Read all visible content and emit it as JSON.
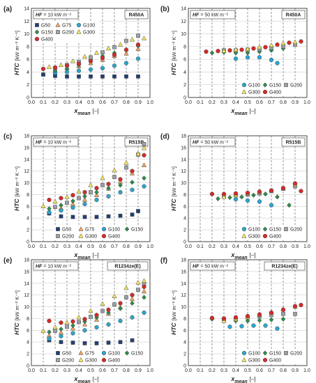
{
  "colors": {
    "G50": "#1f3f74",
    "G75": "#f4a25c",
    "G100": "#2aa6cf",
    "G150": "#2e8b4a",
    "G200": "#9aa0a6",
    "G300": "#f2e45c",
    "G400": "#d42a2a"
  },
  "markers": {
    "G50": "square",
    "G75": "triangle",
    "G100": "circle",
    "G150": "diamond",
    "G200": "square",
    "G300": "triangle",
    "G400": "circle"
  },
  "xlabel_main": "x",
  "xlabel_sub": "mean",
  "xlabel_unit": "[–]",
  "xticks": [
    "0.0",
    "0.1",
    "0.2",
    "0.3",
    "0.4",
    "0.5",
    "0.6",
    "0.7",
    "0.8",
    "0.9",
    "1.0"
  ],
  "ylabel_main": "HTC",
  "ylabel_unit": "[kW m⁻² K⁻¹]",
  "chart_data": [
    {
      "panel": "(a)",
      "type": "scatter",
      "hf_label": "HF",
      "hf_value": "= 10 kW m⁻²",
      "fluid": "R450A",
      "xlim": [
        0,
        1
      ],
      "ylim": [
        0,
        14
      ],
      "yticks": [
        "0",
        "2",
        "4",
        "6",
        "8",
        "10",
        "12",
        "14"
      ],
      "legend": {
        "position": "top-left",
        "rows": [
          [
            "G50",
            "G75",
            "G100"
          ],
          [
            "G150",
            "G200",
            "G300"
          ],
          [
            "G400"
          ]
        ]
      },
      "series": [
        {
          "name": "G50",
          "x": [
            0.1,
            0.2,
            0.3,
            0.4,
            0.5,
            0.6,
            0.7,
            0.8,
            0.9
          ],
          "y": [
            3.6,
            3.4,
            3.3,
            3.3,
            3.3,
            3.3,
            3.3,
            3.3,
            3.3
          ]
        },
        {
          "name": "G75",
          "x": [
            0.2,
            0.3,
            0.4,
            0.5,
            0.6,
            0.7,
            0.8,
            0.9
          ],
          "y": [
            4.2,
            4.6,
            4.9,
            5.4,
            5.9,
            6.5,
            6.9,
            7.6
          ]
        },
        {
          "name": "G100",
          "x": [
            0.2,
            0.3,
            0.4,
            0.5,
            0.6,
            0.7,
            0.8,
            0.9
          ],
          "y": [
            3.9,
            4.0,
            4.2,
            4.4,
            4.6,
            5.0,
            5.4,
            6.1
          ]
        },
        {
          "name": "G150",
          "x": [
            0.2,
            0.3,
            0.4,
            0.5,
            0.6,
            0.7,
            0.8,
            0.9
          ],
          "y": [
            4.2,
            4.5,
            5.1,
            5.9,
            6.5,
            7.0,
            7.4,
            8.1
          ]
        },
        {
          "name": "G200",
          "x": [
            0.2,
            0.3,
            0.4,
            0.5,
            0.6,
            0.7,
            0.8,
            0.9
          ],
          "y": [
            4.6,
            5.1,
            5.6,
            6.3,
            7.1,
            7.9,
            8.9,
            9.7
          ]
        },
        {
          "name": "G300",
          "x": [
            0.15,
            0.25,
            0.35,
            0.45,
            0.55,
            0.65,
            0.75,
            0.85,
            0.95
          ],
          "y": [
            4.8,
            5.1,
            5.7,
            6.4,
            7.0,
            7.7,
            8.3,
            9.1,
            9.3
          ]
        },
        {
          "name": "G400",
          "x": [
            0.1,
            0.2,
            0.3,
            0.4,
            0.5,
            0.6,
            0.7,
            0.8,
            0.9
          ],
          "y": [
            4.5,
            4.7,
            5.0,
            5.3,
            5.7,
            6.2,
            6.7,
            7.5,
            8.3
          ]
        }
      ]
    },
    {
      "panel": "(b)",
      "type": "scatter",
      "hf_label": "HF",
      "hf_value": "= 50 kW m⁻²",
      "fluid": "R450A",
      "xlim": [
        0,
        1
      ],
      "ylim": [
        0,
        14
      ],
      "yticks": [
        "0",
        "2",
        "4",
        "6",
        "8",
        "10",
        "12",
        "14"
      ],
      "legend": {
        "position": "bottom-right",
        "rows": [
          [
            "G100",
            "G150",
            "G200"
          ],
          [
            "G300",
            "G400"
          ]
        ]
      },
      "series": [
        {
          "name": "G100",
          "x": [
            0.4,
            0.5,
            0.6,
            0.7,
            0.75
          ],
          "y": [
            6.1,
            6.3,
            6.3,
            5.9,
            5.4
          ]
        },
        {
          "name": "G150",
          "x": [
            0.2,
            0.3,
            0.4,
            0.5,
            0.6,
            0.7,
            0.8
          ],
          "y": [
            7.0,
            7.1,
            7.0,
            7.0,
            7.2,
            7.4,
            7.7
          ]
        },
        {
          "name": "G200",
          "x": [
            0.3,
            0.4,
            0.5,
            0.6,
            0.7,
            0.8,
            0.9
          ],
          "y": [
            7.4,
            7.4,
            7.5,
            7.6,
            7.8,
            8.0,
            8.3
          ]
        },
        {
          "name": "G300",
          "x": [
            0.3,
            0.4,
            0.5,
            0.6,
            0.7,
            0.8,
            0.9
          ],
          "y": [
            7.3,
            7.5,
            7.6,
            7.9,
            8.2,
            8.5,
            8.7
          ]
        },
        {
          "name": "G400",
          "x": [
            0.15,
            0.25,
            0.35,
            0.45,
            0.55,
            0.65,
            0.75,
            0.85,
            0.95
          ],
          "y": [
            7.2,
            7.3,
            7.4,
            7.5,
            7.7,
            7.9,
            8.3,
            8.6,
            8.8
          ]
        }
      ]
    },
    {
      "panel": "(c)",
      "type": "scatter",
      "hf_label": "HF",
      "hf_value": "= 10 kW m⁻²",
      "fluid": "R515B",
      "xlim": [
        0,
        1
      ],
      "ylim": [
        0,
        18
      ],
      "yticks": [
        "0",
        "2",
        "4",
        "6",
        "8",
        "10",
        "12",
        "14",
        "16",
        "18"
      ],
      "legend": {
        "position": "bottom-right",
        "rows": [
          [
            "G50",
            "G75",
            "G100",
            "G150"
          ],
          [
            "G200",
            "G300",
            "G400"
          ]
        ]
      },
      "series": [
        {
          "name": "G50",
          "x": [
            0.15,
            0.25,
            0.35,
            0.45,
            0.55,
            0.65,
            0.75,
            0.85,
            0.9
          ],
          "y": [
            4.8,
            4.3,
            4.2,
            4.2,
            4.2,
            4.3,
            4.4,
            4.6,
            5.2
          ]
        },
        {
          "name": "G75",
          "x": [
            0.15,
            0.25,
            0.35,
            0.45,
            0.55,
            0.65,
            0.75,
            0.85,
            0.95
          ],
          "y": [
            5.2,
            5.7,
            6.4,
            7.1,
            7.9,
            9.0,
            10.2,
            11.6,
            13.0
          ]
        },
        {
          "name": "G100",
          "x": [
            0.15,
            0.25,
            0.35,
            0.45,
            0.55,
            0.65,
            0.75,
            0.85,
            0.95
          ],
          "y": [
            5.0,
            5.3,
            5.8,
            6.4,
            7.1,
            7.7,
            8.4,
            8.8,
            9.4
          ]
        },
        {
          "name": "G150",
          "x": [
            0.15,
            0.25,
            0.35,
            0.45,
            0.55,
            0.65,
            0.75,
            0.85,
            0.95
          ],
          "y": [
            5.6,
            6.2,
            6.9,
            7.7,
            8.4,
            9.1,
            9.6,
            10.1,
            10.8
          ]
        },
        {
          "name": "G200",
          "x": [
            0.2,
            0.3,
            0.4,
            0.5,
            0.6,
            0.7,
            0.8,
            0.9,
            0.95
          ],
          "y": [
            5.9,
            6.6,
            7.4,
            8.4,
            9.6,
            11.0,
            12.6,
            14.8,
            16.6
          ]
        },
        {
          "name": "G300",
          "x": [
            0.1,
            0.2,
            0.3,
            0.4,
            0.5,
            0.6,
            0.7,
            0.8,
            0.9,
            0.95
          ],
          "y": [
            6.0,
            6.8,
            7.6,
            8.5,
            9.6,
            10.8,
            12.1,
            13.4,
            14.9,
            15.9
          ]
        },
        {
          "name": "G400",
          "x": [
            0.15,
            0.25,
            0.35,
            0.45,
            0.55,
            0.65,
            0.75,
            0.85,
            0.95
          ],
          "y": [
            7.1,
            7.4,
            7.9,
            8.4,
            9.1,
            9.8,
            10.6,
            12.0,
            14.7
          ]
        }
      ]
    },
    {
      "panel": "(d)",
      "type": "scatter",
      "hf_label": "HF",
      "hf_value": "= 50 kW m⁻²",
      "fluid": "R515B",
      "xlim": [
        0,
        1
      ],
      "ylim": [
        0,
        18
      ],
      "yticks": [
        "0",
        "2",
        "4",
        "6",
        "8",
        "10",
        "12",
        "14",
        "16",
        "18"
      ],
      "legend": {
        "position": "bottom-right",
        "rows": [
          [
            "G100",
            "G150",
            "G200"
          ],
          [
            "G300",
            "G400"
          ]
        ]
      },
      "series": [
        {
          "name": "G100",
          "x": [
            0.4,
            0.5,
            0.6,
            0.7
          ],
          "y": [
            7.2,
            7.0,
            6.8,
            6.2
          ]
        },
        {
          "name": "G150",
          "x": [
            0.25,
            0.35,
            0.45,
            0.55,
            0.65,
            0.75,
            0.85
          ],
          "y": [
            7.3,
            7.5,
            7.6,
            7.9,
            8.1,
            7.6,
            6.2
          ]
        },
        {
          "name": "G200",
          "x": [
            0.3,
            0.4,
            0.5,
            0.6,
            0.7,
            0.8,
            0.9
          ],
          "y": [
            7.8,
            7.9,
            8.0,
            8.2,
            8.6,
            9.0,
            9.4
          ]
        },
        {
          "name": "G300",
          "x": [
            0.3,
            0.4,
            0.5,
            0.6,
            0.7,
            0.8,
            0.9
          ],
          "y": [
            7.6,
            7.9,
            8.2,
            8.4,
            8.7,
            9.1,
            9.7
          ]
        },
        {
          "name": "G400",
          "x": [
            0.2,
            0.3,
            0.4,
            0.5,
            0.6,
            0.7,
            0.8,
            0.9,
            0.95
          ],
          "y": [
            8.1,
            8.1,
            8.2,
            8.3,
            8.5,
            8.7,
            9.1,
            9.9,
            8.6
          ]
        }
      ]
    },
    {
      "panel": "(e)",
      "type": "scatter",
      "hf_label": "HF",
      "hf_value": "= 10 kW m⁻²",
      "fluid": "R1234ze(E)",
      "xlim": [
        0,
        1
      ],
      "ylim": [
        0,
        18
      ],
      "yticks": [
        "0",
        "2",
        "4",
        "6",
        "8",
        "10",
        "12",
        "14",
        "16",
        "18"
      ],
      "legend": {
        "position": "bottom-right",
        "rows": [
          [
            "G50",
            "G75",
            "G100",
            "G150"
          ],
          [
            "G200",
            "G300",
            "G400"
          ]
        ]
      },
      "series": [
        {
          "name": "G50",
          "x": [
            0.15,
            0.25,
            0.35,
            0.45,
            0.55,
            0.65,
            0.75,
            0.85
          ],
          "y": [
            4.3,
            4.0,
            3.9,
            3.8,
            3.8,
            3.9,
            4.0,
            4.3
          ]
        },
        {
          "name": "G75",
          "x": [
            0.15,
            0.25,
            0.35,
            0.45,
            0.55,
            0.65,
            0.75,
            0.85,
            0.95
          ],
          "y": [
            5.1,
            5.6,
            6.3,
            7.0,
            7.8,
            8.8,
            9.9,
            11.3,
            12.6
          ]
        },
        {
          "name": "G100",
          "x": [
            0.15,
            0.25,
            0.35,
            0.45,
            0.55,
            0.65,
            0.75,
            0.85,
            0.95
          ],
          "y": [
            4.6,
            5.0,
            5.5,
            6.0,
            6.5,
            7.0,
            7.6,
            8.2,
            9.0
          ]
        },
        {
          "name": "G150",
          "x": [
            0.15,
            0.25,
            0.35,
            0.45,
            0.55,
            0.65,
            0.75,
            0.85,
            0.95
          ],
          "y": [
            5.7,
            6.2,
            6.8,
            7.5,
            8.2,
            9.0,
            9.7,
            10.6,
            11.6
          ]
        },
        {
          "name": "G200",
          "x": [
            0.2,
            0.3,
            0.4,
            0.5,
            0.6,
            0.7,
            0.8,
            0.9,
            0.95
          ],
          "y": [
            5.9,
            6.6,
            7.4,
            8.3,
            9.3,
            10.4,
            11.6,
            12.9,
            13.8
          ]
        },
        {
          "name": "G300",
          "x": [
            0.1,
            0.2,
            0.3,
            0.4,
            0.5,
            0.6,
            0.7,
            0.8,
            0.9,
            0.95
          ],
          "y": [
            5.9,
            6.5,
            7.3,
            8.2,
            9.3,
            10.5,
            11.8,
            13.2,
            14.1,
            14.4
          ]
        },
        {
          "name": "G400",
          "x": [
            0.15,
            0.25,
            0.35,
            0.45,
            0.55,
            0.65,
            0.75,
            0.85,
            0.95
          ],
          "y": [
            7.6,
            7.3,
            7.5,
            7.9,
            8.6,
            9.5,
            10.6,
            12.0,
            13.4
          ]
        }
      ]
    },
    {
      "panel": "(f)",
      "type": "scatter",
      "hf_label": "HF",
      "hf_value": "= 50 kW m⁻²",
      "fluid": "R1234ze(E)",
      "xlim": [
        0,
        1
      ],
      "ylim": [
        0,
        18
      ],
      "yticks": [
        "0",
        "2",
        "4",
        "6",
        "8",
        "10",
        "12",
        "14",
        "16",
        "18"
      ],
      "legend": {
        "position": "bottom-right",
        "rows": [
          [
            "G100",
            "G150",
            "G200"
          ],
          [
            "G300",
            "G400"
          ]
        ]
      },
      "series": [
        {
          "name": "G100",
          "x": [
            0.35,
            0.45,
            0.55,
            0.65,
            0.75
          ],
          "y": [
            6.6,
            6.7,
            6.8,
            6.8,
            6.3
          ]
        },
        {
          "name": "G150",
          "x": [
            0.2,
            0.3,
            0.4,
            0.5,
            0.6,
            0.7,
            0.8
          ],
          "y": [
            7.9,
            7.7,
            7.6,
            7.6,
            7.7,
            7.8,
            7.9
          ]
        },
        {
          "name": "G200",
          "x": [
            0.3,
            0.4,
            0.5,
            0.6,
            0.7,
            0.8,
            0.9
          ],
          "y": [
            7.9,
            8.0,
            8.2,
            8.4,
            8.6,
            8.8,
            8.8
          ]
        },
        {
          "name": "G300",
          "x": [
            0.3,
            0.4,
            0.5,
            0.6,
            0.7,
            0.8,
            0.9
          ],
          "y": [
            7.6,
            7.9,
            8.2,
            8.6,
            9.1,
            9.6,
            10.0
          ]
        },
        {
          "name": "G400",
          "x": [
            0.2,
            0.3,
            0.4,
            0.5,
            0.6,
            0.7,
            0.8,
            0.9,
            0.95
          ],
          "y": [
            8.1,
            8.0,
            8.2,
            8.4,
            8.7,
            9.0,
            9.5,
            10.1,
            10.3
          ]
        }
      ]
    }
  ]
}
